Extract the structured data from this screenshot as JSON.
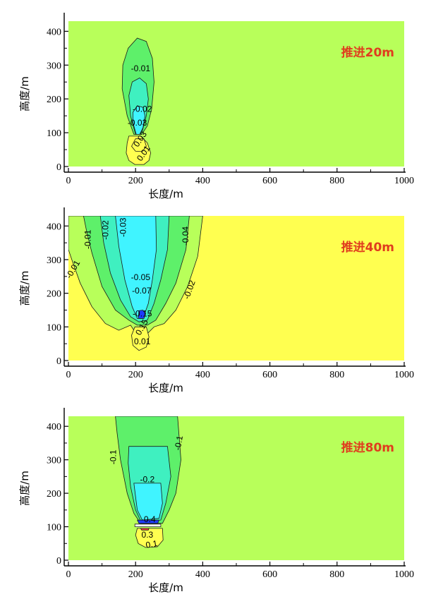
{
  "chart_data": [
    {
      "type": "contour",
      "panel_label": "推进20m",
      "xlabel": "长度/m",
      "ylabel": "高度/m",
      "xlim": [
        0,
        1000
      ],
      "ylim": [
        0,
        430
      ],
      "xticks": [
        "0",
        "200",
        "400",
        "600",
        "800",
        "1000"
      ],
      "yticks": [
        "0",
        "100",
        "200",
        "300",
        "400"
      ],
      "background_color": "#b8ff5a",
      "contour_levels": [
        "-0.01",
        "-0.02",
        "-0.03",
        "0.03",
        "0.01"
      ]
    },
    {
      "type": "contour",
      "panel_label": "推进40m",
      "xlabel": "长度/m",
      "ylabel": "高度/m",
      "xlim": [
        0,
        1000
      ],
      "ylim": [
        0,
        430
      ],
      "xticks": [
        "0",
        "200",
        "400",
        "600",
        "800",
        "1000"
      ],
      "yticks": [
        "0",
        "100",
        "200",
        "300",
        "400"
      ],
      "background_color": "#ffff50",
      "contour_levels": [
        "-0.01",
        "-0.02",
        "-0.03",
        "-0.04",
        "-0.02",
        "-0.01",
        "-0.05",
        "-0.07",
        "-0.15",
        "0.15",
        "0.01"
      ]
    },
    {
      "type": "contour",
      "panel_label": "推进80m",
      "xlabel": "长度/m",
      "ylabel": "高度/m",
      "xlim": [
        0,
        1000
      ],
      "ylim": [
        0,
        430
      ],
      "xticks": [
        "0",
        "200",
        "400",
        "600",
        "800",
        "1000"
      ],
      "yticks": [
        "0",
        "100",
        "200",
        "300",
        "400"
      ],
      "background_color": "#b8ff5a",
      "contour_levels": [
        "-0.1",
        "-0.1",
        "-0.2",
        "-0.4",
        "0.3",
        "0.1"
      ]
    }
  ],
  "colors": {
    "green": "#5ef06a",
    "teal": "#3ff0c0",
    "cyan": "#40f4ff",
    "blue": "#1d3cff",
    "yellow": "#ffff50",
    "lime": "#b8ff5a",
    "red": "#ff3c3c"
  }
}
